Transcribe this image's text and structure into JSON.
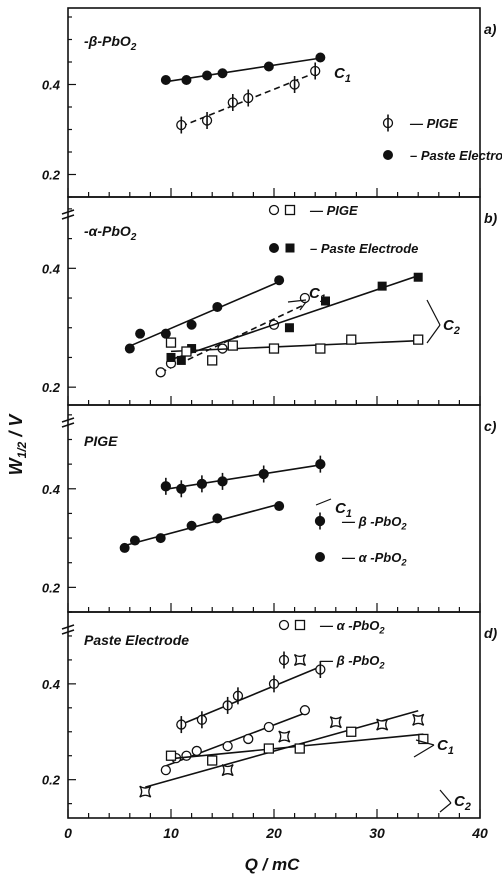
{
  "figure": {
    "ylabel_main": "W",
    "ylabel_sub": "1/2",
    "ylabel_unit": " / V",
    "xlabel": "Q / mC",
    "x_ticks": [
      "0",
      "10",
      "20",
      "30",
      "40"
    ],
    "colors": {
      "ink": "#111111",
      "background": "#ffffff"
    }
  },
  "chart_data": [
    {
      "type": "scatter",
      "panel_letter": "a)",
      "title": "-β-PbO2",
      "xlim": [
        0,
        40
      ],
      "ylim": [
        0.15,
        0.57
      ],
      "y_ticks": [
        0.2,
        0.4
      ],
      "y_tick_labels": [
        "0.2",
        "0.4"
      ],
      "legend": [
        {
          "label": "— PIGE",
          "marker": "half-open-circle"
        },
        {
          "label": "– Paste Electrode",
          "marker": "filled-circle"
        }
      ],
      "annotations": [
        {
          "text": "C1"
        }
      ],
      "series": [
        {
          "name": "Paste Electrode",
          "marker": "filled-circle",
          "line": "solid",
          "x": [
            9.5,
            11.5,
            13.5,
            15,
            19.5,
            24.5
          ],
          "y": [
            0.41,
            0.41,
            0.42,
            0.425,
            0.44,
            0.46
          ]
        },
        {
          "name": "PIGE",
          "marker": "half-open-circle",
          "line": "dashed",
          "x": [
            11,
            13.5,
            16,
            17.5,
            22,
            24
          ],
          "y": [
            0.31,
            0.32,
            0.36,
            0.37,
            0.4,
            0.43
          ]
        }
      ]
    },
    {
      "type": "scatter",
      "panel_letter": "b)",
      "title": "-α-PbO2",
      "xlim": [
        0,
        40
      ],
      "ylim": [
        0.17,
        0.52
      ],
      "y_ticks": [
        0.2,
        0.4
      ],
      "y_tick_labels": [
        "0.2",
        "0.4"
      ],
      "legend": [
        {
          "label": "— PIGE",
          "marker": "open-circle, open-square"
        },
        {
          "label": "– Paste Electrode",
          "marker": "filled-circle, filled-square"
        }
      ],
      "annotations": [
        {
          "text": "C1"
        },
        {
          "text": "C2"
        }
      ],
      "series": [
        {
          "name": "C1 Paste Electrode",
          "marker": "filled-circle",
          "line": "solid",
          "x": [
            6,
            7,
            9.5,
            12,
            14.5,
            20.5
          ],
          "y": [
            0.265,
            0.29,
            0.29,
            0.305,
            0.335,
            0.38
          ]
        },
        {
          "name": "C1 PIGE",
          "marker": "open-circle",
          "line": "dashed",
          "x": [
            9,
            10,
            15,
            20,
            23
          ],
          "y": [
            0.225,
            0.24,
            0.265,
            0.305,
            0.35
          ]
        },
        {
          "name": "C2 Paste Electrode",
          "marker": "filled-square",
          "line": "solid",
          "x": [
            10,
            11,
            12,
            21.5,
            25,
            30.5,
            34
          ],
          "y": [
            0.25,
            0.245,
            0.265,
            0.3,
            0.345,
            0.37,
            0.385
          ]
        },
        {
          "name": "C2 PIGE",
          "marker": "open-square",
          "line": "solid",
          "x": [
            10,
            11.5,
            14,
            16,
            20,
            24.5,
            27.5,
            34
          ],
          "y": [
            0.275,
            0.26,
            0.245,
            0.27,
            0.265,
            0.265,
            0.28,
            0.28
          ]
        }
      ]
    },
    {
      "type": "scatter",
      "panel_letter": "c)",
      "title": "PIGE",
      "xlim": [
        0,
        40
      ],
      "ylim": [
        0.15,
        0.57
      ],
      "y_ticks": [
        0.2,
        0.4
      ],
      "y_tick_labels": [
        "0.2",
        "0.4"
      ],
      "legend": [
        {
          "label": "— β -PbO2",
          "marker": "half-filled-circle"
        },
        {
          "label": "— α -PbO2",
          "marker": "filled-circle"
        }
      ],
      "annotations": [
        {
          "text": "C1"
        }
      ],
      "series": [
        {
          "name": "β-PbO2",
          "marker": "half-filled-circle",
          "line": "solid",
          "x": [
            9.5,
            11,
            13,
            15,
            19,
            24.5
          ],
          "y": [
            0.405,
            0.4,
            0.41,
            0.415,
            0.43,
            0.45
          ]
        },
        {
          "name": "α-PbO2",
          "marker": "filled-circle",
          "line": "solid",
          "x": [
            5.5,
            6.5,
            9,
            12,
            14.5,
            20.5
          ],
          "y": [
            0.28,
            0.295,
            0.3,
            0.325,
            0.34,
            0.365
          ]
        }
      ]
    },
    {
      "type": "scatter",
      "panel_letter": "d)",
      "title": "Paste Electrode",
      "xlim": [
        0,
        40
      ],
      "ylim": [
        0.12,
        0.55
      ],
      "y_ticks": [
        0.2,
        0.4
      ],
      "y_tick_labels": [
        "0.2",
        "0.4"
      ],
      "legend": [
        {
          "label": "— α -PbO2",
          "marker": "open-circle, open-square"
        },
        {
          "label": "— β -PbO2",
          "marker": "half-open-circle, star-square"
        }
      ],
      "annotations": [
        {
          "text": "C1"
        },
        {
          "text": "C2"
        }
      ],
      "series": [
        {
          "name": "C1 β-PbO2",
          "marker": "half-open-circle",
          "line": "solid",
          "x": [
            11,
            13,
            15.5,
            16.5,
            20,
            24.5
          ],
          "y": [
            0.315,
            0.325,
            0.355,
            0.375,
            0.4,
            0.43
          ]
        },
        {
          "name": "C1 α-PbO2",
          "marker": "open-circle",
          "line": "solid",
          "x": [
            9.5,
            10.5,
            11.5,
            12.5,
            15.5,
            17.5,
            19.5,
            23
          ],
          "y": [
            0.22,
            0.245,
            0.25,
            0.26,
            0.27,
            0.285,
            0.31,
            0.345
          ]
        },
        {
          "name": "C2 β-PbO2",
          "marker": "star-square",
          "line": "solid",
          "x": [
            7.5,
            15.5,
            21,
            26,
            30.5,
            34
          ],
          "y": [
            0.175,
            0.22,
            0.29,
            0.32,
            0.315,
            0.325
          ]
        },
        {
          "name": "C2 α-PbO2",
          "marker": "open-square",
          "line": "solid",
          "x": [
            10,
            14,
            19.5,
            22.5,
            27.5,
            34.5
          ],
          "y": [
            0.25,
            0.24,
            0.265,
            0.265,
            0.3,
            0.285
          ]
        }
      ]
    }
  ]
}
